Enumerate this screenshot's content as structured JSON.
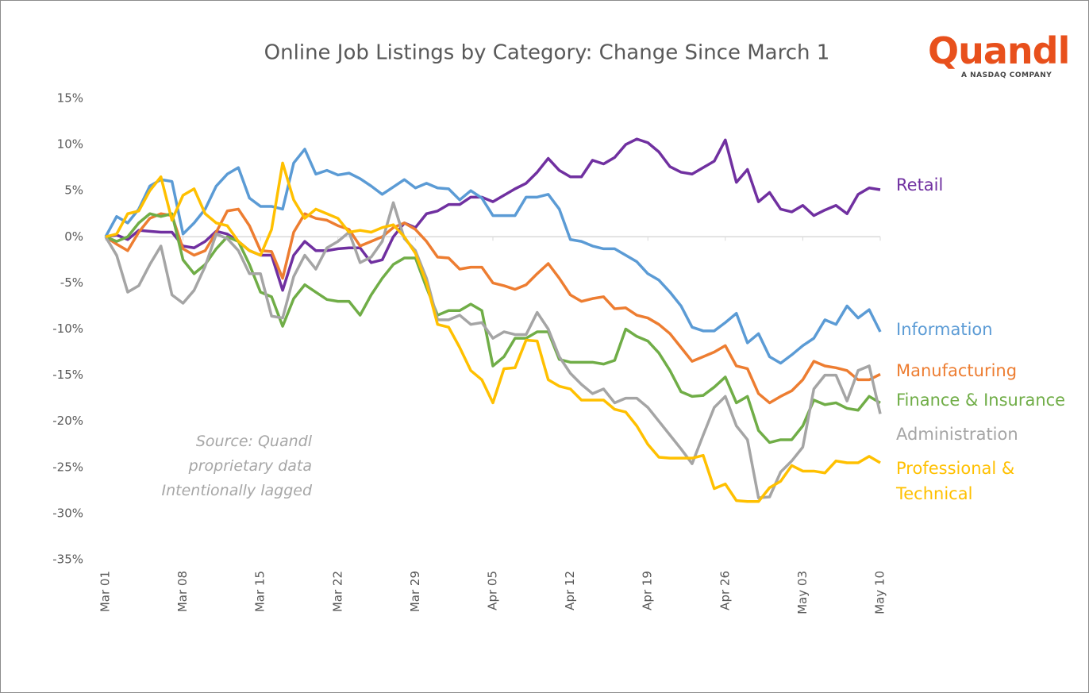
{
  "chart_data": {
    "type": "line",
    "title": "Online Job Listings by Category: Change Since March 1",
    "logo": {
      "name": "Quandl",
      "tagline": "A NASDAQ COMPANY"
    },
    "annotation": [
      "Source: Quandl",
      "proprietary data",
      "Intentionally lagged"
    ],
    "categories": [
      "Mar 01",
      null,
      null,
      null,
      null,
      null,
      null,
      "Mar 08",
      null,
      null,
      null,
      null,
      null,
      null,
      "Mar 15",
      null,
      null,
      null,
      null,
      null,
      null,
      "Mar 22",
      null,
      null,
      null,
      null,
      null,
      null,
      "Mar 29",
      null,
      null,
      null,
      null,
      null,
      null,
      "Apr 05",
      null,
      null,
      null,
      null,
      null,
      null,
      "Apr 12",
      null,
      null,
      null,
      null,
      null,
      null,
      "Apr 19",
      null,
      null,
      null,
      null,
      null,
      null,
      "Apr 26",
      null,
      null,
      null,
      null,
      null,
      null,
      "May 03",
      null,
      null,
      null,
      null,
      null,
      null,
      "May 10"
    ],
    "ylim": [
      -35,
      15
    ],
    "yticks": [
      {
        "value": 15,
        "label": "15%"
      },
      {
        "value": 10,
        "label": "10%"
      },
      {
        "value": 5,
        "label": "5%"
      },
      {
        "value": 0,
        "label": "0%"
      },
      {
        "value": -5,
        "label": "-5%"
      },
      {
        "value": -10,
        "label": "-10%"
      },
      {
        "value": -15,
        "label": "-15%"
      },
      {
        "value": -20,
        "label": "-20%"
      },
      {
        "value": -25,
        "label": "-25%"
      },
      {
        "value": -30,
        "label": "-30%"
      },
      {
        "value": -35,
        "label": "-35%"
      }
    ],
    "series": [
      {
        "name": "Retail",
        "color": "#7030a0",
        "values": [
          0,
          0.2,
          -0.3,
          0.7,
          0.6,
          0.5,
          0.5,
          -1,
          -1.2,
          -0.5,
          0.6,
          0.3,
          -0.5,
          -1.5,
          -2,
          -2,
          -5.8,
          -2,
          -0.5,
          -1.5,
          -1.5,
          -1.3,
          -1.2,
          -1.2,
          -2.8,
          -2.5,
          0,
          1.5,
          1,
          2.5,
          2.8,
          3.5,
          3.5,
          4.3,
          4.3,
          3.8,
          4.5,
          5.2,
          5.8,
          7,
          8.5,
          7.2,
          6.5,
          6.5,
          8.3,
          7.9,
          8.6,
          10,
          10.6,
          10.2,
          9.2,
          7.6,
          7,
          6.8,
          7.5,
          8.2,
          10.5,
          5.9,
          7.3,
          3.8,
          4.8,
          3,
          2.7,
          3.4,
          2.3,
          2.9,
          3.4,
          2.5,
          4.6,
          5.3,
          5.1
        ]
      },
      {
        "name": "Information",
        "color": "#5b9bd5",
        "values": [
          0,
          2.2,
          1.5,
          3,
          5.5,
          6.2,
          6,
          0.3,
          1.5,
          3,
          5.5,
          6.8,
          7.5,
          4.2,
          3.3,
          3.3,
          3,
          8,
          9.5,
          6.8,
          7.2,
          6.7,
          6.9,
          6.3,
          5.5,
          4.6,
          5.4,
          6.2,
          5.3,
          5.8,
          5.3,
          5.2,
          4,
          5,
          4.2,
          2.3,
          2.3,
          2.3,
          4.3,
          4.3,
          4.6,
          3,
          -0.3,
          -0.5,
          -1,
          -1.3,
          -1.3,
          -2,
          -2.7,
          -4,
          -4.7,
          -6,
          -7.5,
          -9.8,
          -10.2,
          -10.2,
          -9.3,
          -8.3,
          -11.5,
          -10.5,
          -13,
          -13.7,
          -12.8,
          -11.8,
          -11,
          -9,
          -9.5,
          -7.5,
          -8.8,
          -7.9,
          -10.3
        ]
      },
      {
        "name": "Manufacturing",
        "color": "#ed7d31",
        "values": [
          0,
          -0.8,
          -1.5,
          0.5,
          2,
          2.5,
          2.3,
          -1.3,
          -2,
          -1.5,
          0.5,
          2.8,
          3,
          1.2,
          -1.5,
          -1.6,
          -4.5,
          0.5,
          2.5,
          2,
          1.8,
          1.2,
          0.8,
          -1,
          -0.5,
          0,
          1,
          1.5,
          0.8,
          -0.5,
          -2.2,
          -2.3,
          -3.5,
          -3.3,
          -3.3,
          -5,
          -5.3,
          -5.7,
          -5.2,
          -4,
          -2.9,
          -4.5,
          -6.3,
          -7,
          -6.7,
          -6.5,
          -7.8,
          -7.7,
          -8.5,
          -8.8,
          -9.5,
          -10.5,
          -12,
          -13.5,
          -13,
          -12.5,
          -11.8,
          -14,
          -14.3,
          -17,
          -18,
          -17.3,
          -16.7,
          -15.5,
          -13.5,
          -14,
          -14.2,
          -14.5,
          -15.5,
          -15.5,
          -14.9
        ]
      },
      {
        "name": "Finance & Insurance",
        "color": "#70ad47",
        "values": [
          0,
          -0.5,
          0,
          1.5,
          2.5,
          2.2,
          2.5,
          -2.5,
          -4,
          -3,
          -1.3,
          0,
          -0.5,
          -3,
          -6,
          -6.5,
          -9.7,
          -6.7,
          -5.2,
          -6,
          -6.8,
          -7,
          -7,
          -8.5,
          -6.3,
          -4.5,
          -3,
          -2.3,
          -2.3,
          -5.5,
          -8.5,
          -8,
          -8,
          -7.3,
          -8,
          -14,
          -13,
          -11,
          -11,
          -10.3,
          -10.3,
          -13.3,
          -13.6,
          -13.6,
          -13.6,
          -13.8,
          -13.4,
          -10,
          -10.8,
          -11.3,
          -12.6,
          -14.5,
          -16.8,
          -17.3,
          -17.2,
          -16.3,
          -15.2,
          -18,
          -17.3,
          -21,
          -22.3,
          -22,
          -22,
          -20.5,
          -17.7,
          -18.2,
          -18,
          -18.6,
          -18.8,
          -17.3,
          -18
        ]
      },
      {
        "name": "Administration",
        "color": "#a5a5a5",
        "values": [
          0,
          -2,
          -6,
          -5.3,
          -3,
          -1,
          -6.3,
          -7.2,
          -5.8,
          -3.2,
          0.3,
          -0.2,
          -1.5,
          -4,
          -4,
          -8.6,
          -8.8,
          -4.3,
          -2,
          -3.5,
          -1.2,
          -0.5,
          0.5,
          -2.8,
          -2.2,
          -0.5,
          3.7,
          -0.2,
          -1.5,
          -4.5,
          -9,
          -9,
          -8.5,
          -9.5,
          -9.3,
          -11,
          -10.3,
          -10.6,
          -10.6,
          -8.2,
          -10,
          -13,
          -14.8,
          -16,
          -17,
          -16.5,
          -18,
          -17.5,
          -17.5,
          -18.5,
          -20,
          -21.5,
          -23,
          -24.6,
          -21.5,
          -18.5,
          -17.3,
          -20.5,
          -22,
          -28.3,
          -28.2,
          -25.5,
          -24.3,
          -22.8,
          -16.5,
          -15,
          -15,
          -17.8,
          -14.5,
          -14,
          -19.2
        ]
      },
      {
        "name": "Professional & Technical",
        "color": "#ffc000",
        "values": [
          0,
          0.3,
          2.5,
          2.8,
          5,
          6.5,
          1.8,
          4.5,
          5.2,
          2.5,
          1.5,
          1.2,
          -0.5,
          -1.5,
          -2,
          0.8,
          8,
          4,
          2,
          3,
          2.5,
          2,
          0.5,
          0.7,
          0.5,
          1,
          1.3,
          0,
          -1.8,
          -5,
          -9.5,
          -9.8,
          -12,
          -14.5,
          -15.5,
          -18,
          -14.3,
          -14.2,
          -11.2,
          -11.3,
          -15.5,
          -16.2,
          -16.5,
          -17.7,
          -17.7,
          -17.7,
          -18.7,
          -19,
          -20.5,
          -22.5,
          -23.9,
          -24,
          -24,
          -24,
          -23.7,
          -27.3,
          -26.8,
          -28.6,
          -28.7,
          -28.7,
          -27.2,
          -26.5,
          -24.8,
          -25.4,
          -25.4,
          -25.6,
          -24.3,
          -24.5,
          -24.5,
          -23.8,
          -24.5
        ]
      }
    ]
  }
}
